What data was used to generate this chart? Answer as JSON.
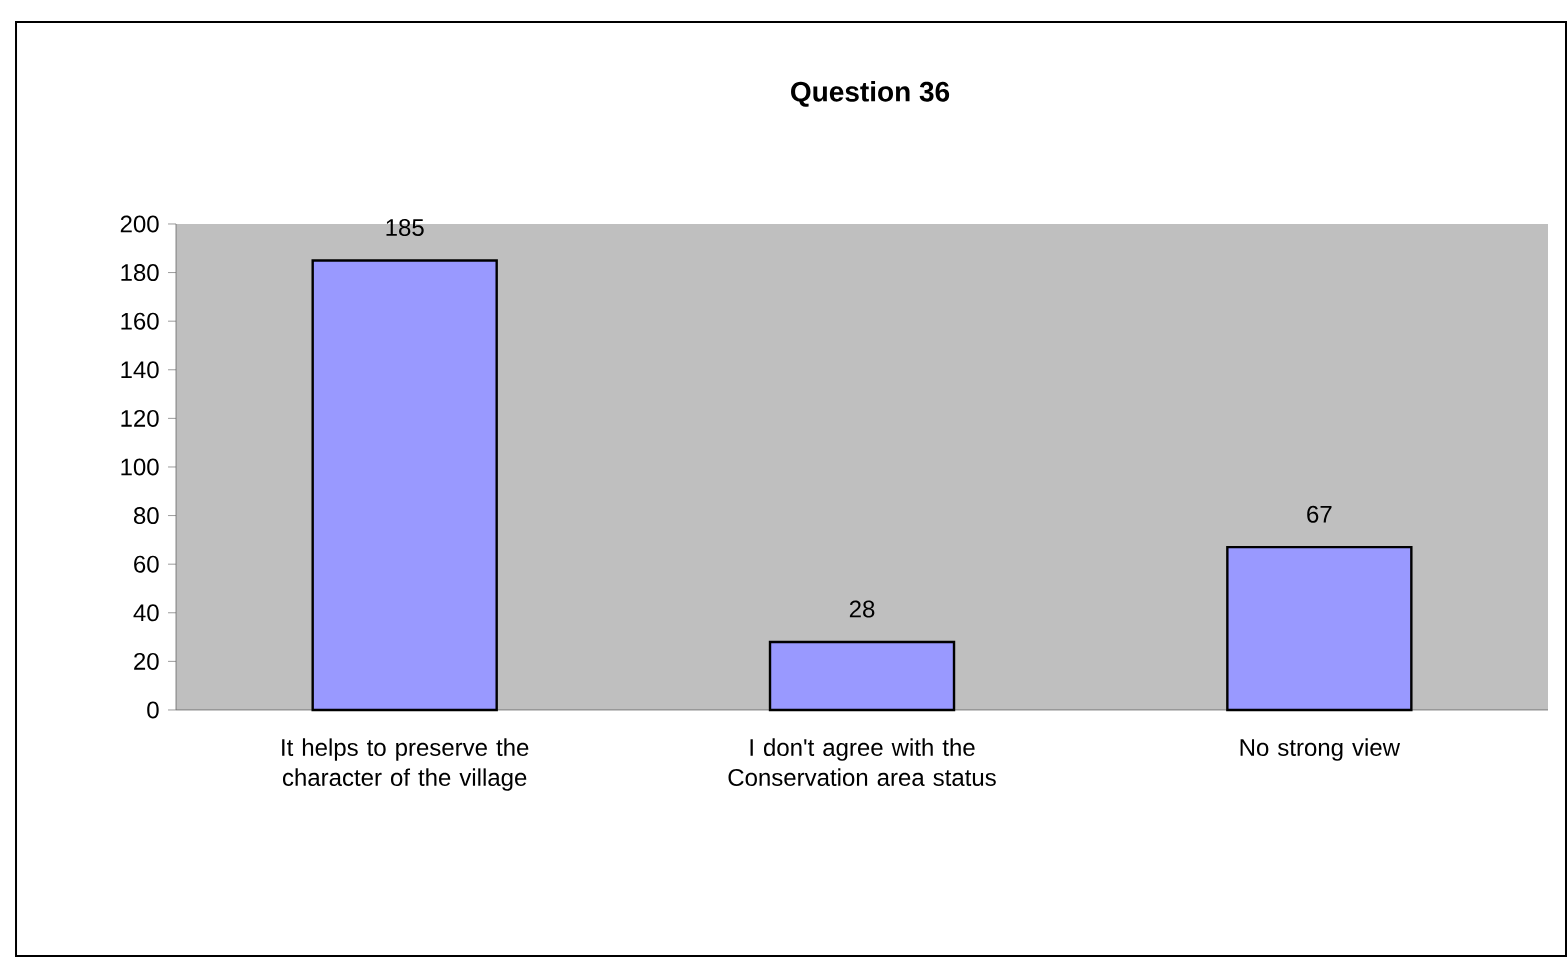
{
  "chart_data": {
    "type": "bar",
    "title": "Question 36",
    "categories": [
      "It helps to preserve the character of the village",
      "I don't agree with the Conservation area status",
      "No strong view"
    ],
    "values": [
      185,
      28,
      67
    ],
    "color": "#9999ff",
    "ylim": [
      0,
      200
    ],
    "yticks": [
      0,
      20,
      40,
      60,
      80,
      100,
      120,
      140,
      160,
      180,
      200
    ],
    "data_labels": true,
    "grid": false
  }
}
